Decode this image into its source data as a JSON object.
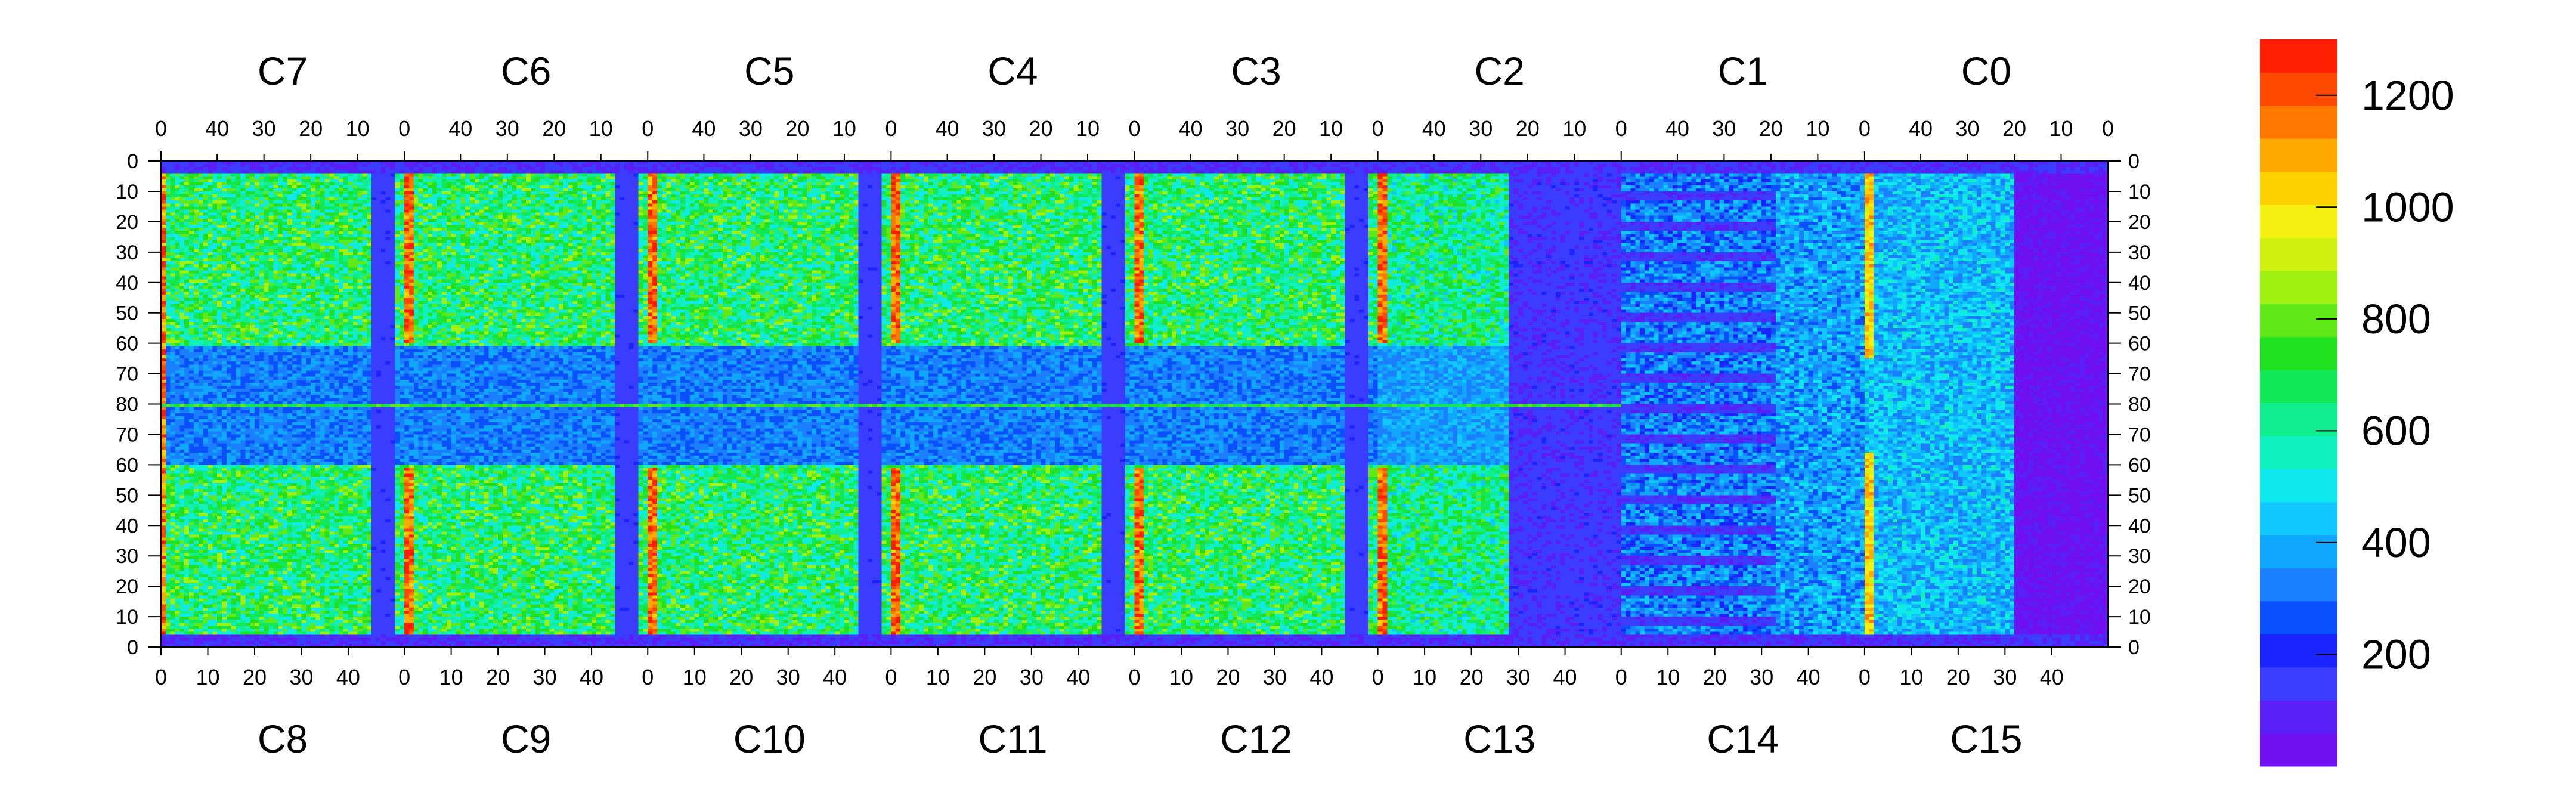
{
  "chart_data": {
    "type": "heatmap",
    "title": "",
    "xlabel": "",
    "ylabel": "",
    "chips_top": [
      "C7",
      "C6",
      "C5",
      "C4",
      "C3",
      "C2",
      "C1",
      "C0"
    ],
    "chips_bottom": [
      "C8",
      "C9",
      "C10",
      "C11",
      "C12",
      "C13",
      "C14",
      "C15"
    ],
    "top_axis_ticks": [
      40,
      30,
      20,
      10,
      0
    ],
    "top_axis_last_tick": 0,
    "bottom_axis_ticks": [
      0,
      10,
      20,
      30,
      40
    ],
    "y_ticks": [
      0,
      10,
      20,
      30,
      40,
      50,
      60,
      70,
      80,
      70,
      60,
      50,
      40,
      30,
      20,
      10,
      0
    ],
    "grid_size": {
      "columns_per_chip": 52,
      "rows": 160
    },
    "color_scale": {
      "min": 0,
      "max": 1300,
      "ticks": [
        200,
        400,
        600,
        800,
        1000,
        1200
      ],
      "colors": [
        "#7010f0",
        "#5a1ef6",
        "#3c3cff",
        "#1a24ff",
        "#0a50ff",
        "#1a80ff",
        "#10a8ff",
        "#10c8ff",
        "#10e8f0",
        "#10f0c0",
        "#10ee90",
        "#10e858",
        "#20e020",
        "#60e818",
        "#a0f010",
        "#d0f010",
        "#f4f010",
        "#ffd000",
        "#ffa800",
        "#ff7800",
        "#ff4800",
        "#ff1e00"
      ]
    },
    "chip_features": {
      "column_hot_rows": "red stripe in first column of each chip (values ~1200)",
      "mid_row_index": 80
    }
  }
}
